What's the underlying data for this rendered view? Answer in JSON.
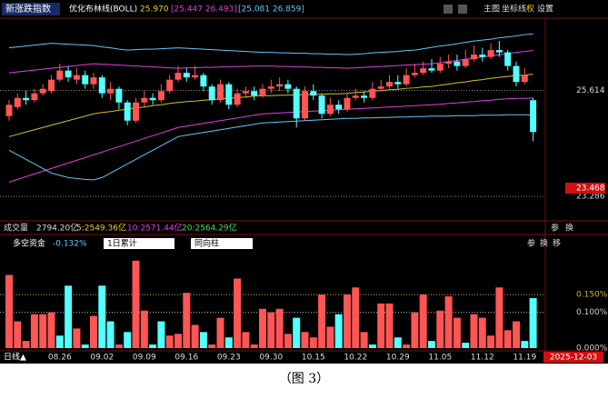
{
  "main_header": {
    "name": "新涨跌指数",
    "indicator": "优化布林线(BOLL)",
    "mid": "25.970",
    "inner_band": "[25.447 26.493]",
    "outer_band": "[25.081 26.859]",
    "buttons": [
      "主图",
      "坐标线",
      "权",
      "设置"
    ]
  },
  "volume_bar": {
    "label": "成交量",
    "total": "2794.20亿",
    "ma5": "5:2549.36亿",
    "ma10": "10:2571.44亿",
    "ma20": "20:2564.29亿",
    "buttons": [
      "参",
      "换"
    ]
  },
  "flow_header": {
    "label": "多空资金",
    "value": "-0.132%",
    "mode": "1日累计",
    "style": "同向柱",
    "buttons": [
      "参",
      "换",
      "移"
    ]
  },
  "bottom_bar": {
    "period": "日线▲",
    "date": "2025-12-03"
  },
  "caption": "（图 3）",
  "chart_data": [
    {
      "type": "candlestick",
      "open": [
        25.05,
        25.25,
        25.45,
        25.4,
        25.55,
        25.6,
        25.85,
        26.05,
        25.85,
        25.95,
        25.75,
        25.9,
        25.55,
        25.65,
        25.35,
        24.95,
        25.35,
        25.45,
        25.4,
        25.6,
        25.85,
        26.0,
        25.9,
        25.95,
        25.7,
        25.4,
        25.75,
        25.3,
        25.55,
        25.6,
        25.5,
        25.65,
        25.7,
        25.75,
        25.65,
        25.0,
        25.6,
        25.5,
        25.1,
        25.3,
        25.2,
        25.45,
        25.5,
        25.45,
        25.65,
        25.7,
        25.8,
        25.75,
        25.95,
        26.0,
        26.1,
        26.05,
        26.2,
        26.25,
        26.15,
        26.3,
        26.4,
        26.35,
        26.5,
        26.45,
        26.15,
        25.8,
        25.4
      ],
      "high": [
        25.4,
        25.55,
        25.6,
        25.65,
        25.75,
        25.95,
        26.2,
        26.15,
        26.1,
        26.05,
        26.0,
        25.95,
        25.8,
        25.7,
        25.4,
        25.45,
        25.6,
        25.55,
        25.75,
        25.95,
        26.15,
        26.1,
        26.15,
        26.0,
        25.75,
        25.85,
        25.8,
        25.65,
        25.7,
        25.7,
        25.75,
        25.85,
        25.9,
        25.85,
        25.7,
        25.7,
        25.75,
        25.55,
        25.45,
        25.4,
        25.55,
        25.65,
        25.6,
        25.8,
        25.85,
        25.95,
        25.95,
        26.1,
        26.2,
        26.25,
        26.3,
        26.35,
        26.4,
        26.4,
        26.5,
        26.6,
        26.55,
        26.65,
        26.7,
        26.5,
        26.25,
        26.1,
        25.45
      ],
      "low": [
        24.95,
        25.2,
        25.3,
        25.35,
        25.5,
        25.55,
        25.8,
        25.8,
        25.75,
        25.65,
        25.65,
        25.45,
        25.4,
        25.2,
        24.85,
        24.9,
        25.25,
        25.3,
        25.35,
        25.55,
        25.8,
        25.8,
        25.85,
        25.6,
        25.3,
        25.35,
        25.2,
        25.25,
        25.45,
        25.4,
        25.45,
        25.55,
        25.6,
        25.55,
        24.8,
        24.95,
        25.4,
        25.0,
        25.05,
        25.1,
        25.15,
        25.4,
        25.35,
        25.4,
        25.6,
        25.65,
        25.65,
        25.7,
        25.9,
        25.95,
        26.0,
        26.0,
        26.1,
        26.05,
        26.1,
        26.25,
        26.25,
        26.3,
        26.35,
        26.05,
        25.7,
        25.75,
        24.5
      ],
      "close": [
        25.3,
        25.45,
        25.4,
        25.55,
        25.65,
        25.85,
        26.05,
        25.9,
        25.95,
        25.75,
        25.9,
        25.55,
        25.65,
        25.35,
        24.95,
        25.35,
        25.45,
        25.4,
        25.6,
        25.85,
        26.0,
        25.9,
        25.95,
        25.7,
        25.4,
        25.75,
        25.3,
        25.55,
        25.6,
        25.5,
        25.65,
        25.7,
        25.75,
        25.65,
        25.0,
        25.6,
        25.5,
        25.1,
        25.3,
        25.2,
        25.45,
        25.5,
        25.45,
        25.65,
        25.7,
        25.8,
        25.75,
        25.95,
        26.0,
        26.1,
        26.05,
        26.2,
        26.25,
        26.15,
        26.3,
        26.4,
        26.35,
        26.5,
        26.45,
        26.15,
        25.8,
        25.95,
        24.7
      ],
      "up_color": "#ff5555",
      "down_color": "#54ffff",
      "series": [
        {
          "color": "#5fc8ff",
          "values": [
            26.55,
            26.57,
            26.59,
            26.61,
            26.63,
            26.65,
            26.64,
            26.63,
            26.62,
            26.61,
            26.6,
            26.57,
            26.55,
            26.52,
            26.5,
            26.51,
            26.52,
            26.52,
            26.53,
            26.54,
            26.55,
            26.54,
            26.53,
            26.52,
            26.51,
            26.5,
            26.49,
            26.48,
            26.47,
            26.46,
            26.45,
            26.45,
            26.44,
            26.44,
            26.43,
            26.43,
            26.42,
            26.42,
            26.41,
            26.41,
            26.4,
            26.41,
            26.42,
            26.44,
            26.45,
            26.46,
            26.47,
            26.49,
            26.5,
            26.53,
            26.56,
            26.59,
            26.61,
            26.64,
            26.67,
            26.7,
            26.72,
            26.74,
            26.77,
            26.79,
            26.81,
            26.84,
            26.859
          ]
        },
        {
          "color": "#e040e0",
          "values": [
            26.0,
            26.02,
            26.04,
            26.06,
            26.08,
            26.1,
            26.12,
            26.14,
            26.16,
            26.18,
            26.2,
            26.19,
            26.18,
            26.17,
            26.16,
            26.15,
            26.14,
            26.13,
            26.12,
            26.11,
            26.1,
            26.11,
            26.11,
            26.12,
            26.12,
            26.13,
            26.13,
            26.14,
            26.14,
            26.15,
            26.15,
            26.15,
            26.14,
            26.14,
            26.13,
            26.13,
            26.12,
            26.12,
            26.11,
            26.11,
            26.1,
            26.11,
            26.12,
            26.13,
            26.14,
            26.15,
            26.16,
            26.17,
            26.18,
            26.19,
            26.2,
            26.22,
            26.25,
            26.27,
            26.3,
            26.32,
            26.35,
            26.37,
            26.4,
            26.42,
            26.45,
            26.47,
            26.493
          ]
        },
        {
          "color": "#d8c020",
          "values": [
            24.6,
            24.65,
            24.7,
            24.75,
            24.8,
            24.85,
            24.9,
            24.95,
            25.0,
            25.05,
            25.1,
            25.13,
            25.15,
            25.18,
            25.2,
            25.23,
            25.25,
            25.28,
            25.3,
            25.33,
            25.35,
            25.37,
            25.38,
            25.4,
            25.41,
            25.43,
            25.44,
            25.46,
            25.47,
            25.49,
            25.5,
            25.5,
            25.51,
            25.51,
            25.52,
            25.52,
            25.53,
            25.53,
            25.54,
            25.54,
            25.55,
            25.57,
            25.58,
            25.6,
            25.61,
            25.63,
            25.64,
            25.66,
            25.67,
            25.69,
            25.7,
            25.73,
            25.75,
            25.78,
            25.8,
            25.83,
            25.85,
            25.88,
            25.9,
            25.92,
            25.94,
            25.95,
            25.97
          ]
        },
        {
          "color": "#e040e0",
          "values": [
            23.6,
            23.66,
            23.72,
            23.78,
            23.84,
            23.9,
            23.96,
            24.02,
            24.08,
            24.14,
            24.2,
            24.26,
            24.32,
            24.38,
            24.44,
            24.5,
            24.56,
            24.62,
            24.68,
            24.74,
            24.8,
            24.83,
            24.86,
            24.89,
            24.92,
            24.95,
            24.98,
            25.01,
            25.04,
            25.07,
            25.1,
            25.11,
            25.12,
            25.13,
            25.14,
            25.15,
            25.16,
            25.17,
            25.18,
            25.19,
            25.2,
            25.21,
            25.22,
            25.23,
            25.24,
            25.25,
            25.26,
            25.27,
            25.28,
            25.29,
            25.3,
            25.31,
            25.33,
            25.34,
            25.36,
            25.37,
            25.39,
            25.4,
            25.42,
            25.43,
            25.44,
            25.44,
            25.447
          ]
        },
        {
          "color": "#5fc8ff",
          "values": [
            24.3,
            24.2,
            24.1,
            24.0,
            23.9,
            23.8,
            23.75,
            23.7,
            23.68,
            23.66,
            23.65,
            23.7,
            23.8,
            23.9,
            24.0,
            24.1,
            24.2,
            24.3,
            24.4,
            24.5,
            24.6,
            24.63,
            24.66,
            24.69,
            24.72,
            24.75,
            24.78,
            24.81,
            24.84,
            24.87,
            24.9,
            24.91,
            24.92,
            24.93,
            24.94,
            24.95,
            24.96,
            24.97,
            24.98,
            24.99,
            25.0,
            25.0,
            25.01,
            25.01,
            25.02,
            25.02,
            25.03,
            25.03,
            25.04,
            25.04,
            25.05,
            25.05,
            25.05,
            25.06,
            25.06,
            25.06,
            25.07,
            25.07,
            25.07,
            25.08,
            25.08,
            25.08,
            25.081
          ]
        }
      ],
      "ylim": [
        22.77,
        27.4
      ],
      "yticks": [
        25.614,
        23.286
      ],
      "price_marker": 23.468,
      "grid": true
    },
    {
      "type": "bar",
      "categories": [
        null,
        null,
        null,
        null,
        null,
        null,
        "08.26",
        null,
        null,
        null,
        null,
        "09.02",
        null,
        null,
        null,
        null,
        "09.09",
        null,
        null,
        null,
        null,
        "09.16",
        null,
        null,
        null,
        null,
        "09.23",
        null,
        null,
        null,
        null,
        "09.30",
        null,
        null,
        null,
        null,
        "10.15",
        null,
        null,
        null,
        null,
        "10.22",
        null,
        null,
        null,
        null,
        "10.29",
        null,
        null,
        null,
        null,
        "11.05",
        null,
        null,
        null,
        null,
        "11.12",
        null,
        null,
        null,
        null,
        "11.19",
        null
      ],
      "values": [
        0.205,
        0.075,
        0.02,
        0.095,
        0.095,
        0.1,
        0.035,
        0.175,
        0.055,
        0.01,
        0.09,
        0.175,
        0.075,
        0.01,
        0.045,
        0.245,
        0.105,
        0.01,
        0.075,
        0.035,
        0.04,
        0.155,
        0.065,
        0.045,
        0.01,
        0.085,
        0.03,
        0.195,
        0.045,
        0.01,
        0.11,
        0.1,
        0.11,
        0.04,
        0.085,
        0.045,
        0.03,
        0.15,
        0.06,
        0.095,
        0.15,
        0.17,
        0.045,
        0.01,
        0.125,
        0.125,
        0.03,
        0.01,
        0.1,
        0.15,
        0.02,
        0.105,
        0.145,
        0.085,
        0.015,
        0.095,
        0.085,
        0.035,
        0.17,
        0.05,
        0.075,
        0.02,
        0.14
      ],
      "colors": [
        "#ff5555",
        "#ff5555",
        "#ff5555",
        "#ff5555",
        "#ff5555",
        "#ff5555",
        "#54ffff",
        "#54ffff",
        "#ff5555",
        "#54ffff",
        "#ff5555",
        "#54ffff",
        "#54ffff",
        "#ff5555",
        "#54ffff",
        "#ff5555",
        "#ff5555",
        "#54ffff",
        "#54ffff",
        "#ff5555",
        "#ff5555",
        "#ff5555",
        "#ff5555",
        "#54ffff",
        "#ff5555",
        "#ff5555",
        "#54ffff",
        "#ff5555",
        "#ff5555",
        "#ff5555",
        "#ff5555",
        "#ff5555",
        "#ff5555",
        "#ff5555",
        "#54ffff",
        "#ff5555",
        "#ff5555",
        "#ff5555",
        "#ff5555",
        "#54ffff",
        "#ff5555",
        "#ff5555",
        "#ff5555",
        "#54ffff",
        "#ff5555",
        "#ff5555",
        "#54ffff",
        "#ff5555",
        "#ff5555",
        "#ff5555",
        "#54ffff",
        "#ff5555",
        "#ff5555",
        "#ff5555",
        "#54ffff",
        "#ff5555",
        "#ff5555",
        "#ff5555",
        "#ff5555",
        "#ff5555",
        "#ff5555",
        "#54ffff",
        "#54ffff"
      ],
      "ylim": [
        0,
        0.27
      ],
      "yticks": [
        {
          "value": 0.15,
          "label": "0.150%"
        },
        {
          "value": 0.1,
          "label": "0.100%"
        },
        {
          "value": 0,
          "label": "0.000%"
        }
      ],
      "grid_colors": [
        "#c8b428",
        "#cccccc"
      ]
    }
  ]
}
